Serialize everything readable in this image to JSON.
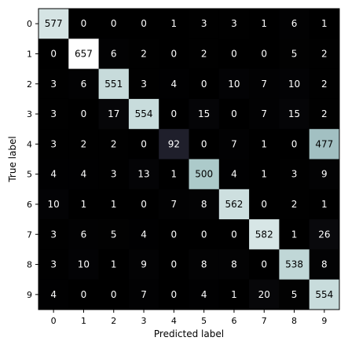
{
  "chart_data": {
    "type": "heatmap",
    "xlabel": "Predicted label",
    "ylabel": "True label",
    "x_ticks": [
      "0",
      "1",
      "2",
      "3",
      "4",
      "5",
      "6",
      "7",
      "8",
      "9"
    ],
    "y_ticks": [
      "0",
      "1",
      "2",
      "3",
      "4",
      "5",
      "6",
      "7",
      "8",
      "9"
    ],
    "matrix": [
      [
        577,
        0,
        0,
        0,
        1,
        3,
        3,
        1,
        6,
        1
      ],
      [
        0,
        657,
        6,
        2,
        0,
        2,
        0,
        0,
        5,
        2
      ],
      [
        3,
        6,
        551,
        3,
        4,
        0,
        10,
        7,
        10,
        2
      ],
      [
        3,
        0,
        17,
        554,
        0,
        15,
        0,
        7,
        15,
        2
      ],
      [
        3,
        2,
        2,
        0,
        92,
        0,
        7,
        1,
        0,
        477
      ],
      [
        4,
        4,
        3,
        13,
        1,
        500,
        4,
        1,
        3,
        9
      ],
      [
        10,
        1,
        1,
        0,
        7,
        8,
        562,
        0,
        2,
        1
      ],
      [
        3,
        6,
        5,
        4,
        0,
        0,
        0,
        582,
        1,
        26
      ],
      [
        3,
        10,
        1,
        9,
        0,
        8,
        8,
        0,
        538,
        8
      ],
      [
        4,
        0,
        0,
        7,
        0,
        4,
        1,
        20,
        5,
        554
      ]
    ],
    "colormap": "bone",
    "color_range": [
      0,
      657
    ],
    "grid": false,
    "legend": "none"
  }
}
